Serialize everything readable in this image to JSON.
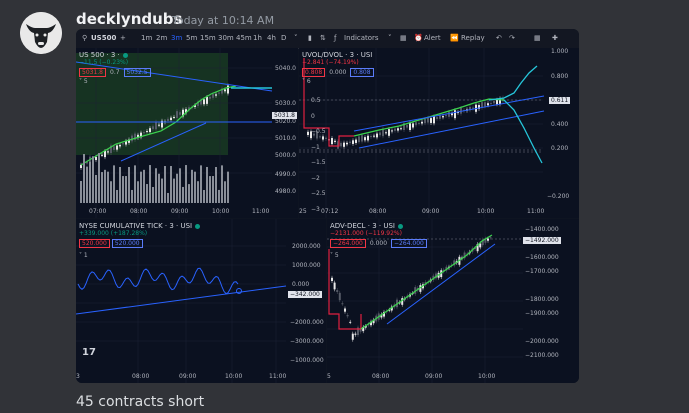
{
  "message": {
    "username": "decklyndubs",
    "timestamp": "Today at 10:14 AM",
    "caption": "45 contracts short"
  },
  "toolbar": {
    "symbol": "US500",
    "add_icon": "plus-icon",
    "intervals": [
      "1m",
      "2m",
      "3m",
      "5m",
      "15m",
      "30m",
      "45m",
      "1h",
      "4h",
      "D"
    ],
    "active_interval": "3m",
    "indicators_label": "Indicators",
    "alert_label": "Alert",
    "replay_label": "Replay"
  },
  "panels": {
    "us500": {
      "title": "US 500 · 3 ·",
      "change": "−11.5 (−0.23%)",
      "pill_low": "5031.8",
      "pill_mid": "0.7",
      "pill_high": "5032.5",
      "legend_count": "5",
      "last_value": "5031.8",
      "y_ticks": [
        "5040.0",
        "5030.0",
        "5020.0",
        "5010.0",
        "5000.0",
        "4990.0",
        "4980.0"
      ],
      "x_ticks": [
        "07:00",
        "08:00",
        "09:00",
        "10:00",
        "11:00"
      ]
    },
    "uvol": {
      "title": "UVOL/DVOL · 3 · USI",
      "change": "−2.841 (−74.19%)",
      "pill_low": "0.808",
      "pill_mid": "0.000",
      "pill_high": "0.808",
      "legend_count": "6",
      "last_value": "0.611",
      "y_ticks": [
        "1.000",
        "0.800",
        "0.600",
        "0.400",
        "0.200",
        "−0.200"
      ],
      "inner_ticks": [
        "0.5",
        "0",
        "−0.5",
        "−1",
        "−1.5",
        "−2",
        "−2.5",
        "−3"
      ],
      "x_ticks": [
        "25",
        "07:12",
        "08:00",
        "09:00",
        "10:00",
        "11:00"
      ]
    },
    "tick": {
      "title": "NYSE CUMULATIVE TICK · 3 · USI",
      "change": "+339.000 (+187.28%)",
      "pill_low": "520.000",
      "pill_high": "520.000",
      "legend_count": "1",
      "last_value": "−342.000",
      "y_ticks": [
        "2000.000",
        "1000.000",
        "0.000",
        "−1000.000",
        "−2000.000",
        "−3000.000"
      ],
      "x_ticks": [
        "3",
        "08:00",
        "09:00",
        "10:00",
        "11:00"
      ]
    },
    "adv": {
      "title": "ADV-DECL · 3 · USI",
      "change": "−2131.000 (−119.92%)",
      "pill_low": "−264.000",
      "pill_mid": "0.000",
      "pill_high": "−264.000",
      "legend_count": "5",
      "last_value": "−1492.000",
      "y_ticks": [
        "−1400.000",
        "−1600.000",
        "−1700.000",
        "−1800.000",
        "−1900.000",
        "−2000.000",
        "−2100.000"
      ],
      "x_ticks": [
        "5",
        "08:00",
        "09:00",
        "10:00"
      ]
    }
  },
  "colors": {
    "bg": "#313338",
    "chart_bg": "#0b1120",
    "up": "#4caf50",
    "down": "#f23645",
    "trend": "#2962ff",
    "supertrend_green": "#3bd34e",
    "supertrend_red": "#e02040",
    "forecast": "#26c6da"
  }
}
